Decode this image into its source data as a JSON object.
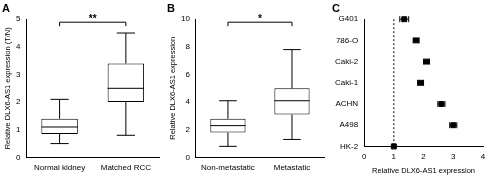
{
  "chart_data": [
    {
      "type": "box",
      "title": "A",
      "categories": [
        "Normal kidney",
        "Matched RCC"
      ],
      "values": [
        {
          "min": 0.5,
          "q1": 0.85,
          "median": 1.1,
          "q3": 1.4,
          "max": 2.1
        },
        {
          "min": 0.8,
          "q1": 2.0,
          "median": 2.5,
          "q3": 3.4,
          "max": 4.5
        }
      ],
      "ylabel": "Relative DLX6-AS1 expression (T/N)",
      "ylim": [
        0,
        5
      ],
      "yticks": [
        0,
        1,
        2,
        3,
        4,
        5
      ],
      "annotations": [
        "**"
      ],
      "color": "#000000"
    },
    {
      "type": "box",
      "title": "B",
      "categories": [
        "Non-metastatic",
        "Metastatic"
      ],
      "values": [
        {
          "min": 0.8,
          "q1": 1.8,
          "median": 2.3,
          "q3": 2.8,
          "max": 4.1
        },
        {
          "min": 1.3,
          "q1": 3.1,
          "median": 4.1,
          "q3": 5.0,
          "max": 7.8
        }
      ],
      "ylabel": "Relative DLX6-AS1 expression",
      "ylim": [
        0,
        10
      ],
      "yticks": [
        0,
        2,
        4,
        6,
        8,
        10
      ],
      "annotations": [
        "*"
      ],
      "color": "#000000"
    },
    {
      "type": "scatter",
      "title": "C",
      "orientation": "horizontal",
      "categories": [
        "G401",
        "786-O",
        "Caki-2",
        "Caki-1",
        "ACHN",
        "A498",
        "HK-2"
      ],
      "values": [
        1.35,
        1.75,
        2.1,
        1.9,
        2.6,
        3.0,
        1.0
      ],
      "errors": [
        0.15,
        0.1,
        0.1,
        0.1,
        0.12,
        0.12,
        0.05
      ],
      "reference_line": 1,
      "xlabel": "Relative DLX6-AS1 expression",
      "xlim": [
        0,
        4
      ],
      "xticks": [
        0,
        1,
        2,
        3,
        4
      ],
      "marker": "square",
      "color": "#000000"
    }
  ]
}
